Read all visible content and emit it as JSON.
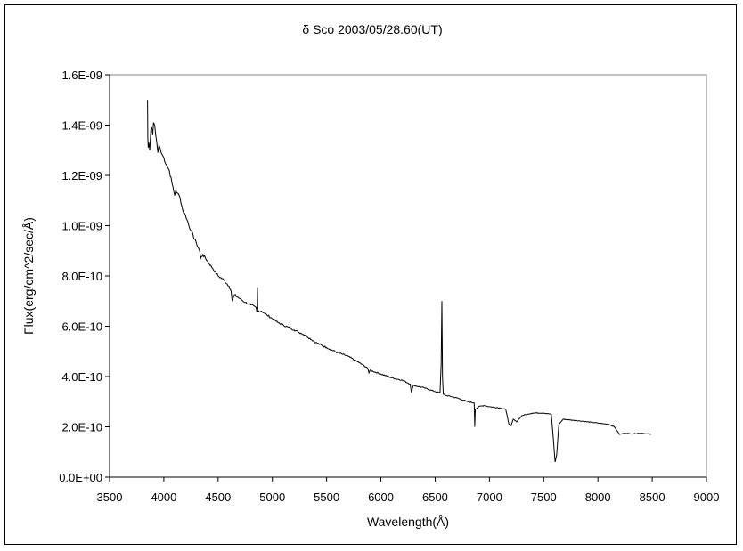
{
  "chart_data": {
    "type": "line",
    "title": "δ Sco   2003/05/28.60(UT)",
    "xlabel": "Wavelength(Å)",
    "ylabel": "Flux(erg/cm^2/sec/Å)",
    "xlim": [
      3500,
      9000
    ],
    "ylim": [
      0,
      1.6e-09
    ],
    "grid": false,
    "legend": "none",
    "x_ticks": [
      3500,
      4000,
      4500,
      5000,
      5500,
      6000,
      6500,
      7000,
      7500,
      8000,
      8500,
      9000
    ],
    "x_tick_labels": [
      "3500",
      "4000",
      "4500",
      "5000",
      "5500",
      "6000",
      "6500",
      "7000",
      "7500",
      "8000",
      "8500",
      "9000"
    ],
    "y_ticks": [
      0,
      2e-10,
      4e-10,
      6e-10,
      8e-10,
      1e-09,
      1.2e-09,
      1.4e-09,
      1.6e-09
    ],
    "y_tick_labels": [
      "0.0E+00",
      "2.0E-10",
      "4.0E-10",
      "6.0E-10",
      "8.0E-10",
      "1.0E-09",
      "1.2E-09",
      "1.4E-09",
      "1.6E-09"
    ],
    "series": [
      {
        "color": "#000000",
        "points": [
          [
            3850,
            1.5e-09
          ],
          [
            3852,
            1.35e-09
          ],
          [
            3856,
            1.31e-09
          ],
          [
            3862,
            1.33e-09
          ],
          [
            3870,
            1.3e-09
          ],
          [
            3880,
            1.38e-09
          ],
          [
            3890,
            1.39e-09
          ],
          [
            3897,
            1.36e-09
          ],
          [
            3905,
            1.41e-09
          ],
          [
            3915,
            1.4e-09
          ],
          [
            3925,
            1.36e-09
          ],
          [
            3935,
            1.33e-09
          ],
          [
            3945,
            1.29e-09
          ],
          [
            3955,
            1.32e-09
          ],
          [
            3965,
            1.31e-09
          ],
          [
            3975,
            1.29e-09
          ],
          [
            4000,
            1.27e-09
          ],
          [
            4025,
            1.24e-09
          ],
          [
            4050,
            1.22e-09
          ],
          [
            4075,
            1.17e-09
          ],
          [
            4100,
            1.12e-09
          ],
          [
            4110,
            1.14e-09
          ],
          [
            4125,
            1.13e-09
          ],
          [
            4150,
            1.11e-09
          ],
          [
            4175,
            1.06e-09
          ],
          [
            4200,
            1.04e-09
          ],
          [
            4250,
            9.8e-10
          ],
          [
            4300,
            9.3e-10
          ],
          [
            4330,
            9e-10
          ],
          [
            4340,
            8.7e-10
          ],
          [
            4360,
            8.85e-10
          ],
          [
            4400,
            8.6e-10
          ],
          [
            4450,
            8.3e-10
          ],
          [
            4500,
            8e-10
          ],
          [
            4550,
            7.85e-10
          ],
          [
            4600,
            7.6e-10
          ],
          [
            4620,
            7.4e-10
          ],
          [
            4630,
            7e-10
          ],
          [
            4650,
            7.25e-10
          ],
          [
            4700,
            7.1e-10
          ],
          [
            4750,
            6.95e-10
          ],
          [
            4800,
            6.85e-10
          ],
          [
            4850,
            6.75e-10
          ],
          [
            4858,
            6.55e-10
          ],
          [
            4862,
            7.55e-10
          ],
          [
            4866,
            6.6e-10
          ],
          [
            4900,
            6.6e-10
          ],
          [
            4950,
            6.45e-10
          ],
          [
            5000,
            6.3e-10
          ],
          [
            5050,
            6.15e-10
          ],
          [
            5100,
            6.05e-10
          ],
          [
            5200,
            5.85e-10
          ],
          [
            5300,
            5.65e-10
          ],
          [
            5400,
            5.35e-10
          ],
          [
            5500,
            5.15e-10
          ],
          [
            5600,
            4.95e-10
          ],
          [
            5700,
            4.8e-10
          ],
          [
            5800,
            4.55e-10
          ],
          [
            5875,
            4.35e-10
          ],
          [
            5890,
            4.15e-10
          ],
          [
            5900,
            4.25e-10
          ],
          [
            6000,
            4.1e-10
          ],
          [
            6100,
            3.95e-10
          ],
          [
            6200,
            3.85e-10
          ],
          [
            6270,
            3.7e-10
          ],
          [
            6280,
            3.4e-10
          ],
          [
            6300,
            3.65e-10
          ],
          [
            6400,
            3.55e-10
          ],
          [
            6500,
            3.4e-10
          ],
          [
            6545,
            3.35e-10
          ],
          [
            6555,
            4.5e-10
          ],
          [
            6562,
            7e-10
          ],
          [
            6568,
            4e-10
          ],
          [
            6575,
            3.3e-10
          ],
          [
            6600,
            3.25e-10
          ],
          [
            6700,
            3.15e-10
          ],
          [
            6800,
            3e-10
          ],
          [
            6860,
            2.95e-10
          ],
          [
            6865,
            2e-10
          ],
          [
            6870,
            2.7e-10
          ],
          [
            6900,
            2.8e-10
          ],
          [
            6950,
            2.85e-10
          ],
          [
            7000,
            2.8e-10
          ],
          [
            7100,
            2.75e-10
          ],
          [
            7150,
            2.7e-10
          ],
          [
            7180,
            2.1e-10
          ],
          [
            7200,
            2.05e-10
          ],
          [
            7220,
            2.3e-10
          ],
          [
            7250,
            2.2e-10
          ],
          [
            7300,
            2.45e-10
          ],
          [
            7400,
            2.55e-10
          ],
          [
            7500,
            2.55e-10
          ],
          [
            7570,
            2.5e-10
          ],
          [
            7590,
            1.5e-10
          ],
          [
            7605,
            6e-11
          ],
          [
            7620,
            9e-11
          ],
          [
            7640,
            2.1e-10
          ],
          [
            7680,
            2.3e-10
          ],
          [
            7800,
            2.25e-10
          ],
          [
            7900,
            2.2e-10
          ],
          [
            8000,
            2.15e-10
          ],
          [
            8100,
            2.1e-10
          ],
          [
            8150,
            2e-10
          ],
          [
            8200,
            1.7e-10
          ],
          [
            8250,
            1.75e-10
          ],
          [
            8300,
            1.72e-10
          ],
          [
            8400,
            1.75e-10
          ],
          [
            8490,
            1.7e-10
          ]
        ]
      }
    ]
  }
}
